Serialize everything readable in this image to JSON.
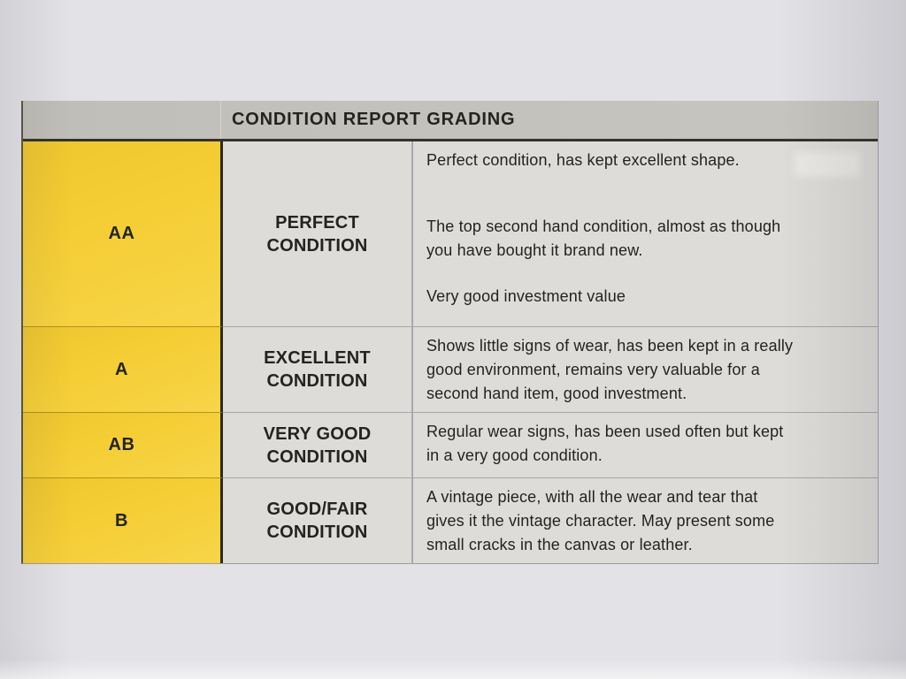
{
  "title": "CONDITION REPORT GRADING",
  "rows": [
    {
      "grade": "AA",
      "condition": "PERFECT\nCONDITION",
      "descriptions": [
        "Perfect condition, has kept excellent shape.",
        "The top second hand condition, almost as though\nyou have bought it brand new.",
        "Very good investment value"
      ]
    },
    {
      "grade": "A",
      "condition": "EXCELLENT\nCONDITION",
      "descriptions": [
        "Shows little signs of wear, has been kept in a really\ngood environment, remains very valuable for a\nsecond hand item, good investment."
      ]
    },
    {
      "grade": "AB",
      "condition": "VERY GOOD\nCONDITION",
      "descriptions": [
        "Regular wear signs, has been used often but kept\nin a very good condition."
      ]
    },
    {
      "grade": "B",
      "condition": "GOOD/FAIR\nCONDITION",
      "descriptions": [
        "A vintage piece, with all the wear and tear that\ngives it the vintage character. May present some\nsmall cracks in the canvas or leather."
      ]
    }
  ],
  "colors": {
    "grade_cell_yellow": "#f5ce35",
    "header_gray": "#c3c1bb",
    "cell_background": "#dddcd8",
    "text": "#232320",
    "paper": "#e3e2e6"
  }
}
